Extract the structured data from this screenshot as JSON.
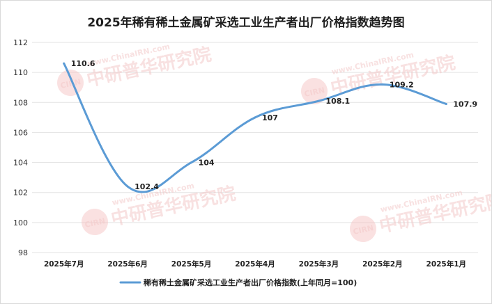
{
  "chart_data": {
    "type": "line",
    "title": "2025年稀有稀土金属矿采选工业生产者出厂价格指数趋势图",
    "categories": [
      "2025年7月",
      "2025年6月",
      "2025年5月",
      "2025年4月",
      "2025年3月",
      "2025年2月",
      "2025年1月"
    ],
    "series": [
      {
        "name": "稀有稀土金属矿采选工业生产者出厂价格指数(上年同月=100)",
        "values": [
          110.6,
          102.4,
          104,
          107,
          108.1,
          109.2,
          107.9
        ],
        "labels": [
          "110.6",
          "102.4",
          "104",
          "107",
          "108.1",
          "109.2",
          "107.9"
        ],
        "color": "#5b9bd5"
      }
    ],
    "ylim": [
      98,
      112
    ],
    "yticks": [
      98,
      100,
      102,
      104,
      106,
      108,
      110,
      112
    ],
    "ytick_labels": [
      "98",
      "100",
      "102",
      "104",
      "106",
      "108",
      "110",
      "112"
    ],
    "grid": true,
    "legend": "bottom",
    "xlabel": "",
    "ylabel": ""
  },
  "watermark": {
    "text": "中研普华研究院",
    "url": "www.ChinaIRN.com",
    "logo": "CIRN"
  }
}
